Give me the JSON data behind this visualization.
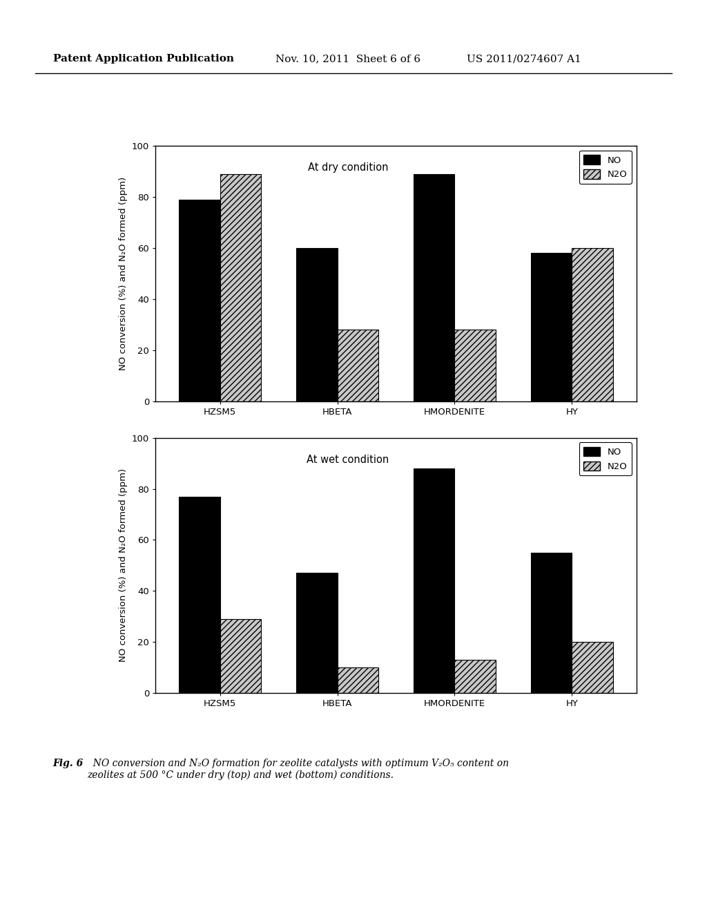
{
  "categories": [
    "HZSM5",
    "HBETA",
    "HMORDENITE",
    "HY"
  ],
  "dry": {
    "NO": [
      79,
      60,
      89,
      58
    ],
    "N2O": [
      89,
      28,
      28,
      60
    ]
  },
  "wet": {
    "NO": [
      77,
      47,
      88,
      55
    ],
    "N2O": [
      29,
      10,
      13,
      20
    ]
  },
  "ylim": [
    0,
    100
  ],
  "yticks": [
    0,
    20,
    40,
    60,
    80,
    100
  ],
  "bar_width": 0.35,
  "no_color": "#000000",
  "n2o_hatch": "////",
  "n2o_facecolor": "#c8c8c8",
  "n2o_edgecolor": "#000000",
  "title_dry": "At dry condition",
  "title_wet": "At wet condition",
  "ylabel": "NO conversion (%) and N₂O formed (ppm)",
  "page_bg": "#ffffff",
  "header_left": "Patent Application Publication",
  "header_mid": "Nov. 10, 2011  Sheet 6 of 6",
  "header_right": "US 2011/0274607 A1",
  "caption_bold": "Fig. 6",
  "caption_rest": "  NO conversion and N₂O formation for zeolite catalysts with optimum V₂O₅ content on\nzeolites at 500 °C under dry (top) and wet (bottom) conditions."
}
